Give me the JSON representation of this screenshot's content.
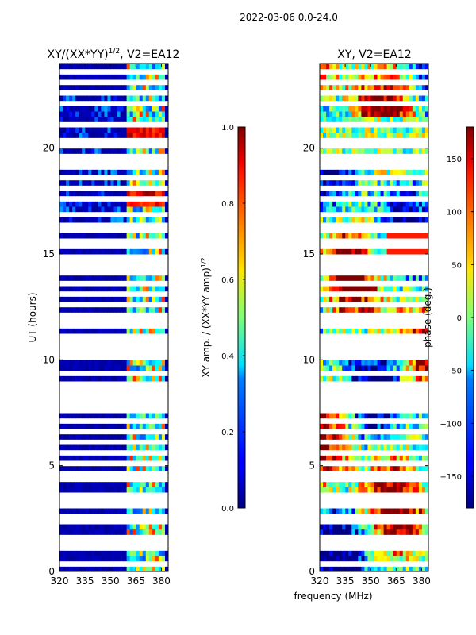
{
  "suptitle": "2022-03-06 0.0-24.0",
  "shared_xlabel": "frequency (MHz)",
  "chart_data": [
    {
      "type": "heatmap",
      "title_main": "XY/(XX*YY)",
      "title_sup": "1/2",
      "title_rest": ", V2=EA12",
      "xlabel": "",
      "ylabel": "UT (hours)",
      "xlim": [
        320,
        384
      ],
      "ylim": [
        0,
        24
      ],
      "xticks": [
        320,
        335,
        350,
        365,
        380
      ],
      "yticks": [
        0,
        5,
        10,
        15,
        20
      ],
      "colorbar": {
        "label_main": "XY amp. / (XX*YY amp)",
        "label_sup": "1/2",
        "range": [
          0.0,
          1.0
        ],
        "ticks": [
          "0.0",
          "0.2",
          "0.4",
          "0.6",
          "0.8",
          "1.0"
        ],
        "tick_values": [
          0.0,
          0.2,
          0.4,
          0.6,
          0.8,
          1.0
        ],
        "colormap": "jet"
      },
      "flagged_hours": [
        0.25,
        1.05,
        1.25,
        1.55,
        2.45,
        2.6,
        3.05,
        3.3,
        3.5,
        4.35,
        4.5,
        5.05,
        5.55,
        6.1,
        6.7,
        7.05,
        7.5,
        7.8,
        8.1,
        8.35,
        8.55,
        8.75,
        9.3,
        10.0,
        10.3,
        10.55,
        10.8,
        11.05,
        11.6,
        11.85,
        12.0,
        12.5,
        13.0,
        13.2,
        13.5,
        14.0,
        14.3,
        14.55,
        14.85,
        15.3,
        15.5,
        16.0,
        16.4,
        16.8,
        17.5,
        18.0,
        18.5,
        19.0,
        19.25,
        19.55,
        20.0,
        20.45,
        21.0,
        22.1,
        22.5,
        23.2,
        23.5
      ],
      "bright_band_mhz": [
        360,
        382
      ]
    },
    {
      "type": "heatmap",
      "title_main": "XY, V2=EA12",
      "xlabel": "frequency (MHz)",
      "ylabel": "",
      "xlim": [
        320,
        384
      ],
      "ylim": [
        0,
        24
      ],
      "xticks": [
        320,
        335,
        350,
        365,
        380
      ],
      "yticks": [
        0,
        5,
        10,
        15,
        20
      ],
      "colorbar": {
        "label_main": "phase (deg.)",
        "range": [
          -180,
          180
        ],
        "ticks": [
          "150",
          "100",
          "50",
          "0",
          "−50",
          "−100",
          "−150"
        ],
        "tick_values": [
          150,
          100,
          50,
          0,
          -50,
          -100,
          -150
        ],
        "colormap": "jet"
      },
      "flagged_hours": [
        0.25,
        1.05,
        1.25,
        1.55,
        2.45,
        2.6,
        3.05,
        3.3,
        3.5,
        4.35,
        4.5,
        5.05,
        5.55,
        6.1,
        6.7,
        7.05,
        7.5,
        7.8,
        8.1,
        8.35,
        8.55,
        8.75,
        9.3,
        10.0,
        10.3,
        10.55,
        10.8,
        11.05,
        11.6,
        11.85,
        12.0,
        12.5,
        13.0,
        13.2,
        13.5,
        14.0,
        14.3,
        14.55,
        14.85,
        15.3,
        15.5,
        16.0,
        16.4,
        16.8,
        17.5,
        18.0,
        18.5,
        19.0,
        19.25,
        19.55,
        20.0,
        20.45,
        21.0,
        22.1,
        22.5,
        23.2,
        23.5
      ]
    }
  ]
}
